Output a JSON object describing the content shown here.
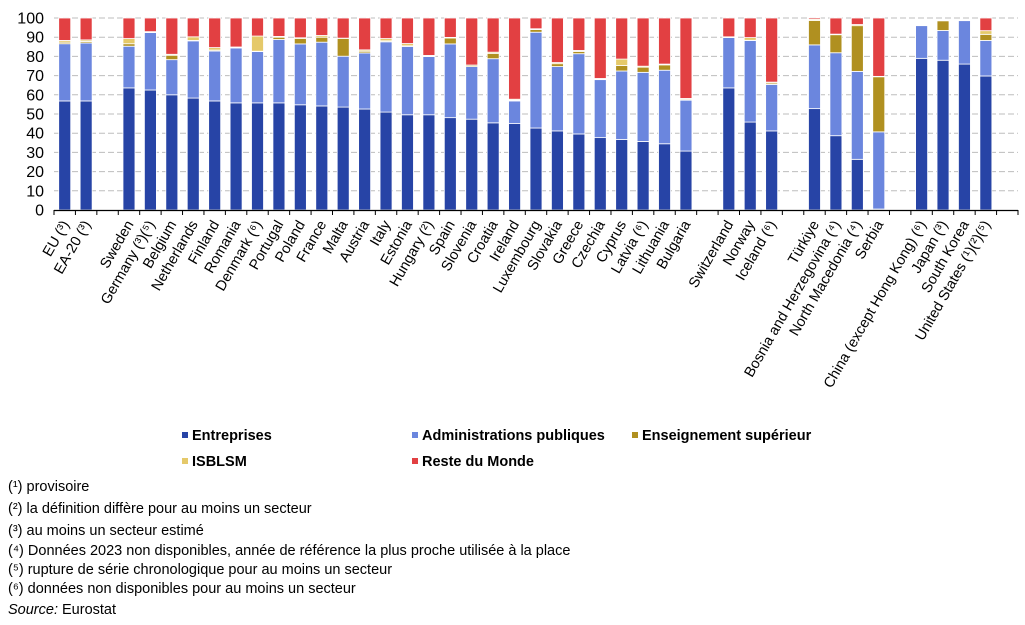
{
  "chart_data": {
    "type": "bar",
    "stacked": true,
    "title": "",
    "xlabel": "",
    "ylabel": "",
    "ylim": [
      0,
      100
    ],
    "yticks": [
      0,
      10,
      20,
      30,
      40,
      50,
      60,
      70,
      80,
      90,
      100
    ],
    "grid": true,
    "legend_position": "bottom",
    "categories": [
      "EU (³)",
      "EA-20 (³)",
      "",
      "Sweden",
      "Germany (³)(⁵)",
      "Belgium",
      "Netherlands",
      "Finland",
      "Romania",
      "Denmark (⁶)",
      "Portugal",
      "Poland",
      "France",
      "Malta",
      "Austria",
      "Italy",
      "Estonia",
      "Hungary (²)",
      "Spain",
      "Slovenia",
      "Croatia",
      "Ireland",
      "Luxembourg",
      "Slovakia",
      "Greece",
      "Czechia",
      "Cyprus",
      "Latvia (⁶)",
      "Lithuania",
      "Bulgaria",
      "",
      "Switzerland",
      "Norway",
      "Iceland (⁶)",
      "",
      "Türkiye",
      "Bosnia and Herzegovina (⁴)",
      "North Macedonia (⁴)",
      "Serbia",
      "",
      "China (except Hong Kong) (⁶)",
      "Japan (³)",
      "South Korea",
      "United States (¹)(²)(⁵)",
      ""
    ],
    "series": [
      {
        "name": "Entreprises",
        "color": "#2744a6",
        "values": [
          56.8,
          56.8,
          null,
          63.6,
          62.5,
          60.0,
          58.3,
          56.8,
          55.8,
          55.8,
          55.8,
          54.8,
          54.2,
          53.6,
          52.6,
          51.0,
          49.6,
          49.6,
          48.1,
          47.3,
          45.4,
          45.0,
          42.7,
          41.2,
          39.6,
          37.7,
          36.7,
          35.7,
          34.5,
          30.7,
          null,
          63.6,
          45.8,
          41.2,
          null,
          52.8,
          38.7,
          26.4,
          0.5,
          null,
          79.0,
          78.0,
          76.0,
          69.8,
          null
        ]
      },
      {
        "name": "Administrations publiques",
        "color": "#6b86de",
        "values": [
          29.8,
          30.2,
          null,
          21.7,
          29.9,
          18.3,
          29.8,
          26.0,
          28.6,
          26.7,
          33.0,
          31.7,
          33.2,
          26.5,
          29.2,
          36.6,
          35.6,
          30.3,
          38.4,
          27.4,
          33.4,
          11.8,
          49.9,
          33.5,
          41.8,
          30.2,
          35.7,
          36.0,
          38.3,
          26.5,
          null,
          26.2,
          42.5,
          24.2,
          null,
          33.2,
          43.2,
          45.8,
          40.2,
          null,
          17.0,
          15.5,
          22.6,
          18.5,
          null
        ]
      },
      {
        "name": "Enseignement supérieur",
        "color": "#b09020",
        "values": [
          0.8,
          0.8,
          null,
          1.3,
          0.2,
          2.3,
          0.2,
          0.5,
          0.3,
          0.2,
          1.2,
          2.9,
          2.6,
          9.3,
          0.9,
          0.5,
          0.3,
          0.3,
          3.1,
          0.7,
          2.8,
          0.4,
          1.4,
          1.5,
          1.2,
          0.3,
          2.9,
          2.7,
          2.8,
          0.3,
          null,
          0.2,
          0.1,
          0.7,
          null,
          12.7,
          9.4,
          23.8,
          28.7,
          null,
          0.0,
          5.0,
          0.0,
          3.2,
          null
        ]
      },
      {
        "name": "ISBLSM",
        "color": "#e5c96a",
        "values": [
          0.9,
          0.8,
          null,
          2.7,
          0.3,
          0.5,
          1.9,
          1.3,
          0.2,
          7.9,
          0.4,
          0.3,
          0.9,
          0.1,
          0.7,
          1.2,
          1.2,
          0.3,
          0.3,
          0.1,
          0.6,
          0.5,
          0.4,
          0.6,
          0.5,
          0.3,
          3.3,
          0.5,
          0.4,
          0.6,
          null,
          0.2,
          1.4,
          0.5,
          null,
          0.6,
          0.3,
          0.6,
          0.2,
          null,
          0.0,
          0.0,
          0.0,
          1.9,
          null
        ]
      },
      {
        "name": "Reste du Monde",
        "color": "#e24042",
        "values": [
          11.7,
          11.4,
          null,
          10.7,
          7.1,
          18.9,
          9.8,
          15.4,
          15.1,
          9.4,
          9.6,
          10.3,
          9.1,
          10.5,
          16.6,
          10.7,
          13.3,
          19.5,
          10.1,
          24.5,
          17.8,
          42.3,
          5.6,
          23.2,
          16.9,
          31.5,
          21.4,
          25.1,
          24.0,
          41.9,
          null,
          9.8,
          10.2,
          33.4,
          null,
          0.7,
          8.4,
          3.4,
          30.4,
          null,
          0.0,
          0.0,
          0.0,
          6.6,
          null
        ]
      }
    ]
  },
  "legend": {
    "items": [
      {
        "label": "Entreprises",
        "color": "#2744a6"
      },
      {
        "label": "Administrations publiques",
        "color": "#6b86de"
      },
      {
        "label": "Enseignement supérieur",
        "color": "#b09020"
      },
      {
        "label": "ISBLSM",
        "color": "#e5c96a"
      },
      {
        "label": "Reste du Monde",
        "color": "#e24042"
      }
    ]
  },
  "notes": [
    "(¹) provisoire",
    "(²) la définition diffère pour au moins un secteur",
    "(³) au moins un secteur estimé",
    "(⁴) Données 2023 non disponibles, année de référence la plus proche utilisée à la place",
    "(⁵) rupture de série chronologique pour au moins un secteur",
    "(⁶) données non disponibles pour au moins un secteur"
  ],
  "source": {
    "label": "Source:",
    "value": " Eurostat"
  }
}
